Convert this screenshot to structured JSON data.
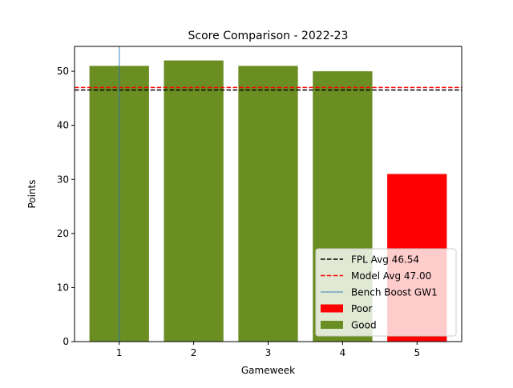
{
  "chart_data": {
    "type": "bar",
    "title": "Score Comparison - 2022-23",
    "xlabel": "Gameweek",
    "ylabel": "Points",
    "categories": [
      1,
      2,
      3,
      4,
      5
    ],
    "values": [
      51,
      52,
      51,
      50,
      31
    ],
    "bar_status": [
      "Good",
      "Good",
      "Good",
      "Good",
      "Poor"
    ],
    "bar_colors": {
      "Good": "#6b8e23",
      "Poor": "#ff0000"
    },
    "xlim": [
      0.4,
      5.6
    ],
    "ylim": [
      0,
      54.6
    ],
    "yticks": [
      0,
      10,
      20,
      30,
      40,
      50
    ],
    "xticks": [
      1,
      2,
      3,
      4,
      5
    ],
    "reference_lines": [
      {
        "label": "FPL Avg 46.54",
        "y": 46.54,
        "color": "#000000",
        "style": "dashed"
      },
      {
        "label": "Model Avg 47.00",
        "y": 47.0,
        "color": "#ff0000",
        "style": "dashed"
      }
    ],
    "vertical_lines": [
      {
        "label": "Bench Boost GW1",
        "x": 1,
        "color": "#1f77b4",
        "alpha": 0.6
      }
    ],
    "legend": {
      "location": "lower-right",
      "entries": [
        {
          "label": "FPL Avg 46.54",
          "kind": "line-dashed",
          "color": "#000000"
        },
        {
          "label": "Model Avg 47.00",
          "kind": "line-dashed",
          "color": "#ff0000"
        },
        {
          "label": "Bench Boost GW1",
          "kind": "line-solid",
          "color": "#1f77b4"
        },
        {
          "label": "Poor",
          "kind": "patch",
          "color": "#ff0000"
        },
        {
          "label": "Good",
          "kind": "patch",
          "color": "#6b8e23"
        }
      ]
    }
  }
}
